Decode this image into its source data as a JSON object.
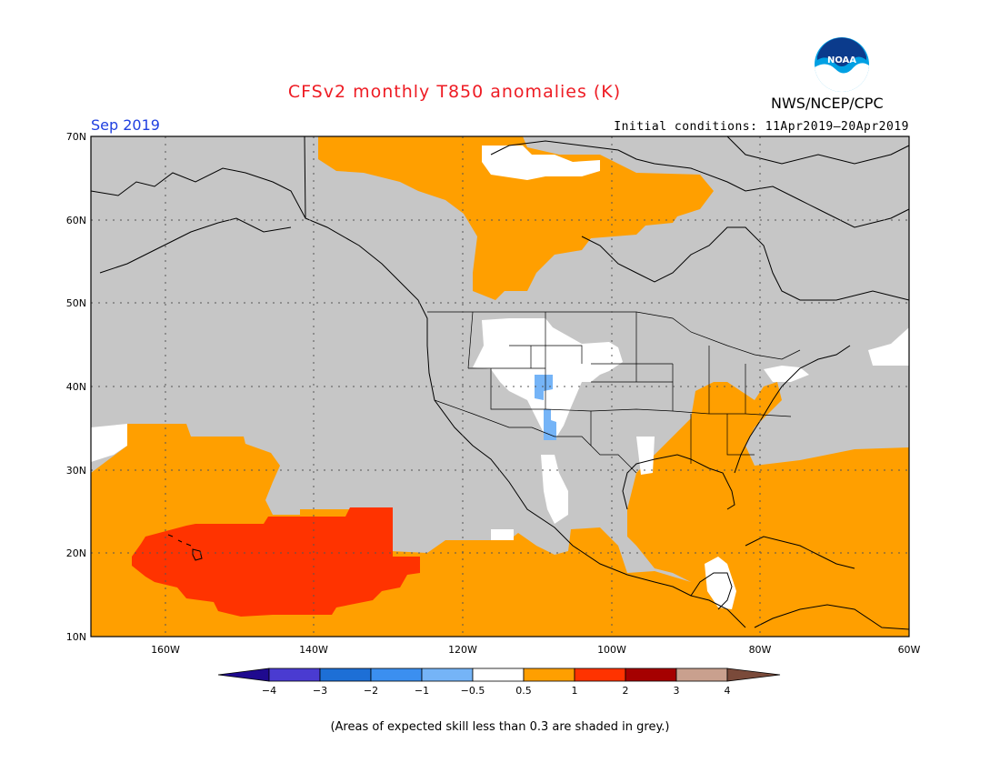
{
  "title": "CFSv2 monthly T850 anomalies (K)",
  "agency": "NWS/NCEP/CPC",
  "logo_text": "NOAA",
  "month": "Sep 2019",
  "initial_conditions": "Initial conditions: 11Apr2019–20Apr2019",
  "footnote": "(Areas of expected skill less than 0.3 are shaded in grey.)",
  "map": {
    "lat_labels": [
      "70N",
      "60N",
      "50N",
      "40N",
      "30N",
      "20N",
      "10N"
    ],
    "lon_labels": [
      "160W",
      "140W",
      "120W",
      "100W",
      "80W",
      "60W"
    ],
    "grid": "dotted",
    "colors": {
      "grey": "#c6c6c6",
      "neutral": "#ffffff",
      "anom_0_5_to_1": "#ff9f00",
      "anom_1_to_2": "#ff3300",
      "anom_neg_0_5_to_neg_1": "#75b4f7"
    }
  },
  "colorbar": {
    "tick_labels": [
      "-4",
      "-3",
      "-2",
      "-1",
      "-0.5",
      "0.5",
      "1",
      "2",
      "3",
      "4"
    ],
    "colors": [
      "#1f0a8f",
      "#4a3bd1",
      "#1d6fd6",
      "#3b8ff0",
      "#75b4f7",
      "#ffffff",
      "#ff9f00",
      "#ff3300",
      "#a50000",
      "#c9a08e",
      "#7a4a3a"
    ]
  }
}
